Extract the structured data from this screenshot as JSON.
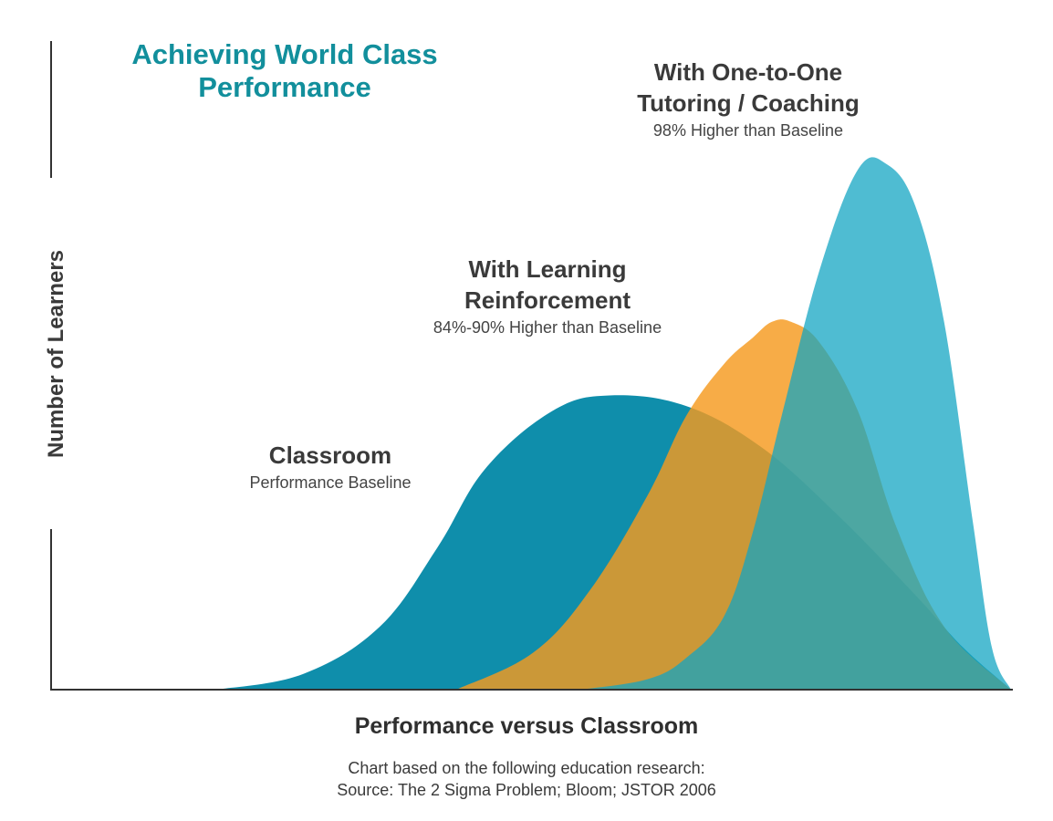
{
  "chart_data": {
    "type": "area",
    "title": "Achieving World Class Performance",
    "xlabel": "Performance versus Classroom",
    "ylabel": "Number of Learners",
    "grid": false,
    "series": [
      {
        "name": "Classroom",
        "subtitle": "Performance Baseline",
        "color": "#0f8eab",
        "opacity": 1.0,
        "x": [
          0.17,
          0.26,
          0.34,
          0.4,
          0.45,
          0.52,
          0.58,
          0.66,
          0.74,
          0.82,
          0.9,
          0.95,
          1.0
        ],
        "y": [
          0.0,
          0.03,
          0.12,
          0.27,
          0.42,
          0.53,
          0.56,
          0.54,
          0.46,
          0.33,
          0.18,
          0.08,
          0.0
        ]
      },
      {
        "name": "With Learning Reinforcement",
        "subtitle": "84%-90% Higher than Baseline",
        "color": "#f59a1f",
        "opacity": 0.82,
        "x": [
          0.42,
          0.5,
          0.56,
          0.62,
          0.66,
          0.7,
          0.73,
          0.75,
          0.77,
          0.8,
          0.84,
          0.88,
          0.93,
          1.0
        ],
        "y": [
          0.0,
          0.07,
          0.19,
          0.37,
          0.52,
          0.62,
          0.67,
          0.7,
          0.7,
          0.66,
          0.53,
          0.31,
          0.12,
          0.0
        ]
      },
      {
        "name": "With One-to-One Tutoring / Coaching",
        "subtitle": "98% Higher than Baseline",
        "color": "#12a4c2",
        "opacity": 0.74,
        "x": [
          0.55,
          0.62,
          0.66,
          0.7,
          0.73,
          0.76,
          0.8,
          0.84,
          0.87,
          0.9,
          0.93,
          0.96,
          0.98,
          1.0
        ],
        "y": [
          0.0,
          0.02,
          0.06,
          0.14,
          0.3,
          0.52,
          0.8,
          0.99,
          1.0,
          0.92,
          0.7,
          0.32,
          0.08,
          0.0
        ]
      }
    ],
    "source_line1": "Chart based on the following education research:",
    "source_line2": "Source: The 2 Sigma Problem; Bloom; JSTOR 2006"
  }
}
